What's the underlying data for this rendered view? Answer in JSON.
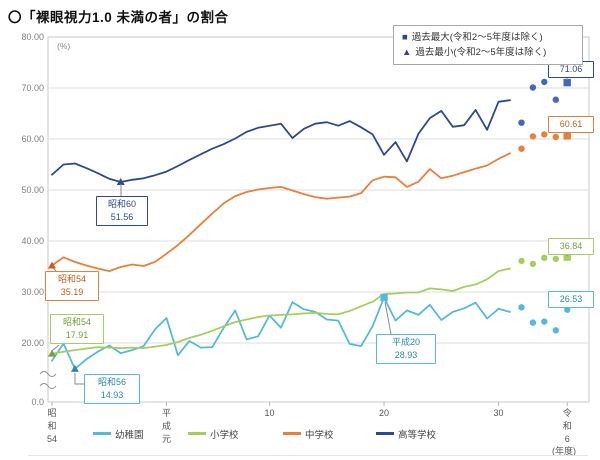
{
  "title": "〇「裸眼視力1.0 未満の者」の割合",
  "note": {
    "max_icon": "■",
    "max_text": "過去最大(令和2～5年度は除く)",
    "min_icon": "▲",
    "min_text": "過去最小(令和2～5年度は除く)"
  },
  "legend": [
    "幼稚園",
    "小学校",
    "中学校",
    "高等学校"
  ],
  "chart_data": {
    "type": "line",
    "title": "「裸眼視力1.0 未満の者」の割合",
    "unit_label": "(%)",
    "x_unit_label": "(年度)",
    "y_axis_note": "axis break between 20.00 and 0.0",
    "y_ticks": [
      {
        "label": "80.00",
        "value": 80
      },
      {
        "label": "70.00",
        "value": 70
      },
      {
        "label": "60.00",
        "value": 60
      },
      {
        "label": "50.00",
        "value": 50
      },
      {
        "label": "40.00",
        "value": 40
      },
      {
        "label": "30.00",
        "value": 30
      },
      {
        "label": "20.00",
        "value": 20
      },
      {
        "label": "0.0",
        "value": 0
      }
    ],
    "y_gridlines": [
      70,
      60,
      50,
      40,
      30,
      20
    ],
    "x_ticks": [
      {
        "label": "昭和54",
        "year": 1979,
        "stacked": true
      },
      {
        "label": "平成元",
        "year": 1989,
        "stacked": true
      },
      {
        "label": "10",
        "year": 1998
      },
      {
        "label": "20",
        "year": 2008
      },
      {
        "label": "30",
        "year": 2018
      },
      {
        "label": "令和6",
        "year": 2024,
        "stacked": true
      }
    ],
    "years": {
      "line_start": 1979,
      "line_end": 2019,
      "excluded": [
        2020,
        2021,
        2022,
        2023
      ],
      "final": 2024
    },
    "series": [
      {
        "name": "幼稚園",
        "color": "#56b9dc",
        "dark": "#2e88a8",
        "final_marker": "circle",
        "values": [
          16.5,
          19.9,
          14.93,
          16.8,
          18.3,
          19.5,
          18.0,
          18.6,
          19.4,
          22.7,
          24.9,
          17.6,
          20.4,
          19.1,
          19.2,
          23.0,
          26.4,
          20.7,
          21.3,
          25.4,
          23.0,
          28.0,
          26.6,
          26.1,
          24.6,
          24.4,
          19.8,
          19.4,
          23.3,
          28.93,
          24.4,
          26.4,
          25.5,
          27.5,
          24.5,
          26.1,
          26.8,
          27.9,
          24.8,
          26.7,
          26.1
        ],
        "excluded_values": [
          27.0,
          24.0,
          24.2,
          22.5
        ],
        "final_value": 26.53
      },
      {
        "name": "小学校",
        "color": "#a5ce5f",
        "dark": "#74a03a",
        "final_marker": "square",
        "values": [
          17.91,
          18.3,
          18.6,
          18.9,
          19.2,
          19.1,
          19.0,
          19.1,
          19.0,
          19.3,
          19.6,
          20.2,
          21.0,
          21.6,
          22.4,
          23.3,
          24.1,
          24.6,
          25.1,
          25.4,
          25.5,
          25.6,
          25.8,
          25.9,
          25.7,
          25.6,
          26.3,
          27.2,
          28.1,
          29.6,
          29.7,
          29.9,
          29.9,
          30.7,
          30.5,
          30.2,
          31.0,
          31.5,
          32.5,
          34.1,
          34.6
        ],
        "excluded_values": [
          36.1,
          35.5,
          36.7,
          36.5
        ],
        "final_value": 36.84
      },
      {
        "name": "中学校",
        "color": "#e8803c",
        "dark": "#c2601e",
        "final_marker": "square",
        "values": [
          35.19,
          36.8,
          35.9,
          35.2,
          34.6,
          34.1,
          34.9,
          35.4,
          35.1,
          35.9,
          37.5,
          39.2,
          41.2,
          43.3,
          45.4,
          47.4,
          48.8,
          49.6,
          50.1,
          50.4,
          50.6,
          49.9,
          49.2,
          48.6,
          48.3,
          48.5,
          48.7,
          49.4,
          51.9,
          52.6,
          52.5,
          50.6,
          51.6,
          54.1,
          52.3,
          52.8,
          53.5,
          54.2,
          54.8,
          56.1,
          57.2
        ],
        "excluded_values": [
          58.1,
          60.5,
          60.9,
          60.4
        ],
        "final_value": 60.61
      },
      {
        "name": "高等学校",
        "color": "#2e4a8c",
        "dot_color": "#4466bb",
        "dark": "#2e4a8c",
        "final_marker": "square",
        "values": [
          53.0,
          55.0,
          55.2,
          54.3,
          53.3,
          52.2,
          51.56,
          52.0,
          52.3,
          52.9,
          53.6,
          54.7,
          55.9,
          57.0,
          58.1,
          59.0,
          60.1,
          61.4,
          62.2,
          62.6,
          63.0,
          60.2,
          62.0,
          63.0,
          63.3,
          62.6,
          63.5,
          62.3,
          60.9,
          56.9,
          59.4,
          55.6,
          61.0,
          64.1,
          65.5,
          62.4,
          62.7,
          65.7,
          61.8,
          67.3,
          67.6
        ],
        "excluded_values": [
          63.2,
          70.1,
          71.2,
          67.7
        ],
        "final_value": 71.06
      }
    ],
    "annotations": [
      {
        "id": "s60-hs",
        "series": 3,
        "year": 1985,
        "value": 51.56,
        "lines": [
          "昭和60",
          "51.56"
        ],
        "marker": "min"
      },
      {
        "id": "s54-jhs",
        "series": 2,
        "year": 1979,
        "value": 35.19,
        "lines": [
          "昭和54",
          "35.19"
        ],
        "marker": "min"
      },
      {
        "id": "s54-es",
        "series": 1,
        "year": 1979,
        "value": 17.91,
        "lines": [
          "昭和54",
          "17.91"
        ],
        "marker": "min"
      },
      {
        "id": "s56-kg",
        "series": 0,
        "year": 1981,
        "value": 14.93,
        "lines": [
          "昭和56",
          "14.93"
        ],
        "marker": "min"
      },
      {
        "id": "h20-kg",
        "series": 0,
        "year": 2008,
        "value": 28.93,
        "lines": [
          "平成20",
          "28.93"
        ],
        "marker": "max"
      },
      {
        "id": "r6-hs",
        "series": 3,
        "year": 2024,
        "value": 71.06,
        "lines": [
          "71.06"
        ],
        "marker": "none"
      },
      {
        "id": "r6-jhs",
        "series": 2,
        "year": 2024,
        "value": 60.61,
        "lines": [
          "60.61"
        ],
        "marker": "none"
      },
      {
        "id": "r6-es",
        "series": 1,
        "year": 2024,
        "value": 36.84,
        "lines": [
          "36.84"
        ],
        "marker": "none"
      },
      {
        "id": "r6-kg",
        "series": 0,
        "year": 2024,
        "value": 26.53,
        "lines": [
          "26.53"
        ],
        "marker": "none"
      }
    ]
  }
}
